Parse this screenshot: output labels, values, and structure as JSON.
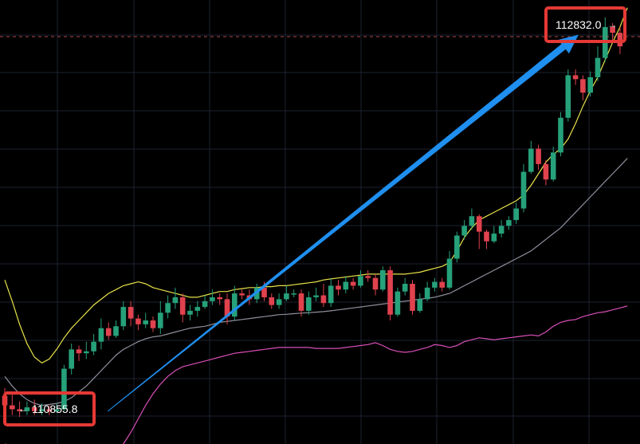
{
  "chart_data": {
    "type": "candlestick",
    "title": "",
    "xlabel": "",
    "ylabel": "",
    "ylim": [
      110700,
      113000
    ],
    "colors": {
      "background": "#000000",
      "grid": "#1d2230",
      "up": "#26a17a",
      "down": "#e0424e",
      "bollinger_upper": "#e8e24a",
      "bollinger_middle": "#8f8f9e",
      "bollinger_lower": "#d94fb8",
      "arrow": "#1f8ff0",
      "callout_border": "#e53935",
      "price_line": "#d65a5a"
    },
    "current_price_line": 112810,
    "candles": [
      [
        110950,
        110900,
        110990,
        110870
      ],
      [
        110900,
        110880,
        110960,
        110850
      ],
      [
        110880,
        110870,
        110920,
        110840
      ],
      [
        110870,
        110890,
        110920,
        110850
      ],
      [
        110890,
        110870,
        110930,
        110850
      ],
      [
        110870,
        110880,
        110910,
        110850
      ],
      [
        110880,
        110870,
        110900,
        110850
      ],
      [
        110870,
        110880,
        110910,
        110860
      ],
      [
        110880,
        111090,
        111110,
        110870
      ],
      [
        111090,
        111190,
        111220,
        111060
      ],
      [
        111190,
        111170,
        111210,
        111130
      ],
      [
        111170,
        111180,
        111230,
        111140
      ],
      [
        111180,
        111230,
        111270,
        111160
      ],
      [
        111230,
        111300,
        111350,
        111190
      ],
      [
        111300,
        111260,
        111330,
        111240
      ],
      [
        111260,
        111310,
        111340,
        111250
      ],
      [
        111310,
        111410,
        111440,
        111290
      ],
      [
        111410,
        111350,
        111440,
        111310
      ],
      [
        111350,
        111320,
        111370,
        111290
      ],
      [
        111320,
        111340,
        111380,
        111300
      ],
      [
        111340,
        111300,
        111360,
        111280
      ],
      [
        111300,
        111380,
        111440,
        111270
      ],
      [
        111380,
        111430,
        111470,
        111350
      ],
      [
        111430,
        111460,
        111510,
        111400
      ],
      [
        111460,
        111370,
        111480,
        111330
      ],
      [
        111370,
        111390,
        111420,
        111340
      ],
      [
        111390,
        111410,
        111440,
        111360
      ],
      [
        111410,
        111440,
        111470,
        111400
      ],
      [
        111440,
        111460,
        111500,
        111420
      ],
      [
        111460,
        111450,
        111480,
        111420
      ],
      [
        111450,
        111360,
        111480,
        111320
      ],
      [
        111360,
        111480,
        111520,
        111340
      ],
      [
        111480,
        111470,
        111500,
        111450
      ],
      [
        111470,
        111450,
        111500,
        111420
      ],
      [
        111450,
        111510,
        111530,
        111430
      ],
      [
        111510,
        111460,
        111540,
        111440
      ],
      [
        111460,
        111420,
        111480,
        111400
      ],
      [
        111420,
        111450,
        111480,
        111400
      ],
      [
        111450,
        111480,
        111520,
        111440
      ],
      [
        111480,
        111480,
        111500,
        111460
      ],
      [
        111480,
        111390,
        111500,
        111360
      ],
      [
        111390,
        111460,
        111490,
        111370
      ],
      [
        111460,
        111470,
        111510,
        111440
      ],
      [
        111470,
        111430,
        111530,
        111410
      ],
      [
        111430,
        111520,
        111560,
        111410
      ],
      [
        111520,
        111500,
        111550,
        111470
      ],
      [
        111500,
        111540,
        111570,
        111480
      ],
      [
        111540,
        111520,
        111560,
        111500
      ],
      [
        111520,
        111570,
        111600,
        111510
      ],
      [
        111570,
        111560,
        111600,
        111540
      ],
      [
        111560,
        111500,
        111580,
        111470
      ],
      [
        111500,
        111600,
        111620,
        111490
      ],
      [
        111600,
        111370,
        111620,
        111340
      ],
      [
        111370,
        111490,
        111510,
        111360
      ],
      [
        111490,
        111530,
        111560,
        111470
      ],
      [
        111530,
        111390,
        111550,
        111370
      ],
      [
        111390,
        111450,
        111480,
        111380
      ],
      [
        111450,
        111510,
        111540,
        111440
      ],
      [
        111510,
        111540,
        111560,
        111490
      ],
      [
        111540,
        111510,
        111560,
        111490
      ],
      [
        111510,
        111660,
        111700,
        111500
      ],
      [
        111660,
        111780,
        111800,
        111640
      ],
      [
        111780,
        111830,
        111860,
        111760
      ],
      [
        111830,
        111880,
        111920,
        111810
      ],
      [
        111880,
        111800,
        111890,
        111710
      ],
      [
        111800,
        111750,
        111810,
        111710
      ],
      [
        111750,
        111790,
        111830,
        111740
      ],
      [
        111790,
        111830,
        111860,
        111770
      ],
      [
        111830,
        111860,
        111880,
        111810
      ],
      [
        111860,
        111920,
        111950,
        111840
      ],
      [
        111920,
        112110,
        112150,
        111900
      ],
      [
        112110,
        112230,
        112270,
        112100
      ],
      [
        112230,
        112150,
        112250,
        112120
      ],
      [
        112150,
        112070,
        112170,
        112040
      ],
      [
        112070,
        112210,
        112240,
        112060
      ],
      [
        112210,
        112390,
        112420,
        112190
      ],
      [
        112390,
        112610,
        112640,
        112370
      ],
      [
        112610,
        112590,
        112640,
        112560
      ],
      [
        112590,
        112520,
        112610,
        112480
      ],
      [
        112520,
        112600,
        112630,
        112500
      ],
      [
        112600,
        112700,
        112760,
        112580
      ],
      [
        112700,
        112860,
        112910,
        112680
      ],
      [
        112860,
        112830,
        112880,
        112790
      ],
      [
        112830,
        112760,
        112860,
        112720
      ]
    ],
    "bollinger": {
      "upper": [
        111550,
        111440,
        111320,
        111220,
        111150,
        111120,
        111140,
        111190,
        111250,
        111300,
        111340,
        111380,
        111420,
        111450,
        111480,
        111500,
        111520,
        111530,
        111540,
        111530,
        111510,
        111500,
        111490,
        111480,
        111470,
        111460,
        111460,
        111470,
        111480,
        111490,
        111490,
        111500,
        111505,
        111510,
        111510,
        111515,
        111515,
        111520,
        111520,
        111525,
        111530,
        111535,
        111540,
        111550,
        111555,
        111560,
        111565,
        111570,
        111575,
        111580,
        111580,
        111580,
        111580,
        111580,
        111580,
        111585,
        111590,
        111600,
        111610,
        111620,
        111640,
        111700,
        111770,
        111820,
        111860,
        111880,
        111900,
        111920,
        111940,
        111960,
        111990,
        112040,
        112100,
        112160,
        112200,
        112230,
        112280,
        112360,
        112450,
        112530,
        112600,
        112690,
        112780,
        112860,
        112960
      ],
      "middle": [
        111050,
        111000,
        110960,
        110930,
        110910,
        110900,
        110905,
        110910,
        110920,
        110940,
        110970,
        111000,
        111040,
        111080,
        111120,
        111160,
        111190,
        111210,
        111230,
        111245,
        111255,
        111260,
        111270,
        111280,
        111290,
        111300,
        111305,
        111310,
        111320,
        111330,
        111335,
        111340,
        111345,
        111350,
        111355,
        111360,
        111365,
        111370,
        111372,
        111375,
        111378,
        111380,
        111383,
        111386,
        111390,
        111395,
        111400,
        111405,
        111410,
        111415,
        111420,
        111425,
        111430,
        111435,
        111440,
        111445,
        111450,
        111455,
        111460,
        111470,
        111480,
        111500,
        111520,
        111540,
        111560,
        111580,
        111600,
        111620,
        111640,
        111660,
        111680,
        111700,
        111730,
        111760,
        111790,
        111820,
        111860,
        111900,
        111940,
        111980,
        112020,
        112060,
        112100,
        112140,
        112180
      ],
      "lower": [
        110700,
        110690,
        110680,
        110670,
        110660,
        110650,
        110640,
        110630,
        110620,
        110610,
        110605,
        110600,
        110600,
        110605,
        110620,
        110650,
        110700,
        110760,
        110830,
        110900,
        110960,
        111010,
        111050,
        111080,
        111100,
        111110,
        111120,
        111130,
        111140,
        111150,
        111160,
        111170,
        111175,
        111180,
        111185,
        111190,
        111195,
        111200,
        111200,
        111200,
        111200,
        111200,
        111195,
        111195,
        111195,
        111195,
        111200,
        111205,
        111210,
        111215,
        111225,
        111210,
        111190,
        111180,
        111175,
        111180,
        111190,
        111200,
        111215,
        111210,
        111200,
        111210,
        111230,
        111240,
        111250,
        111245,
        111240,
        111245,
        111250,
        111255,
        111260,
        111265,
        111260,
        111280,
        111310,
        111330,
        111340,
        111345,
        111360,
        111370,
        111380,
        111385,
        111395,
        111405,
        111415
      ]
    },
    "arrow": {
      "from": [
        13.9,
        110870
      ],
      "to": [
        77.4,
        112820
      ]
    },
    "callouts": {
      "high": {
        "value": "112832.0",
        "arrow": "→"
      },
      "low": {
        "value": "110855.8",
        "arrow": "←"
      }
    }
  }
}
